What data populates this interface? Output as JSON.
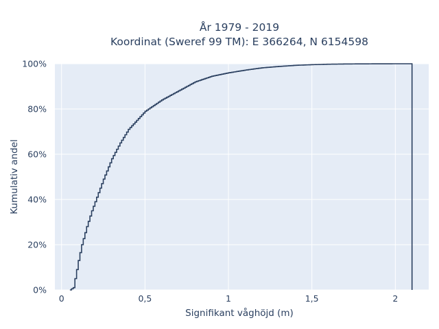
{
  "chart_data": {
    "type": "line",
    "title_lines": [
      "År 1979 - 2019",
      "Koordinat (Sweref 99 TM): E 366264, N 6154598"
    ],
    "xlabel": "Signifikant våghöjd (m)",
    "ylabel": "Kumulativ andel",
    "xlim": [
      -0.04,
      2.2
    ],
    "ylim": [
      0,
      1
    ],
    "x_ticks": [
      {
        "value": 0,
        "label": "0"
      },
      {
        "value": 0.5,
        "label": "0,5"
      },
      {
        "value": 1,
        "label": "1"
      },
      {
        "value": 1.5,
        "label": "1,5"
      },
      {
        "value": 2,
        "label": "2"
      }
    ],
    "y_ticks": [
      {
        "value": 0,
        "label": "0%"
      },
      {
        "value": 0.2,
        "label": "20%"
      },
      {
        "value": 0.4,
        "label": "40%"
      },
      {
        "value": 0.6,
        "label": "60%"
      },
      {
        "value": 0.8,
        "label": "80%"
      },
      {
        "value": 1,
        "label": "100%"
      }
    ],
    "grid": true,
    "line_color": "#2a3f5f",
    "background_color": "#e5ecf6",
    "series": [
      {
        "x": [
          0.05,
          0.07,
          0.08,
          0.1,
          0.12,
          0.15,
          0.18,
          0.2,
          0.25,
          0.3,
          0.35,
          0.4,
          0.45,
          0.5,
          0.6,
          0.7,
          0.8,
          0.9,
          1.0,
          1.1,
          1.2,
          1.3,
          1.4,
          1.5,
          1.6,
          1.7,
          1.8,
          1.9,
          2.0,
          2.1
        ],
        "y": [
          0.0,
          0.01,
          0.05,
          0.13,
          0.2,
          0.28,
          0.35,
          0.39,
          0.49,
          0.58,
          0.65,
          0.71,
          0.75,
          0.79,
          0.84,
          0.88,
          0.92,
          0.945,
          0.96,
          0.972,
          0.982,
          0.988,
          0.993,
          0.996,
          0.998,
          0.999,
          0.9995,
          0.9998,
          1.0,
          1.0
        ]
      }
    ]
  }
}
